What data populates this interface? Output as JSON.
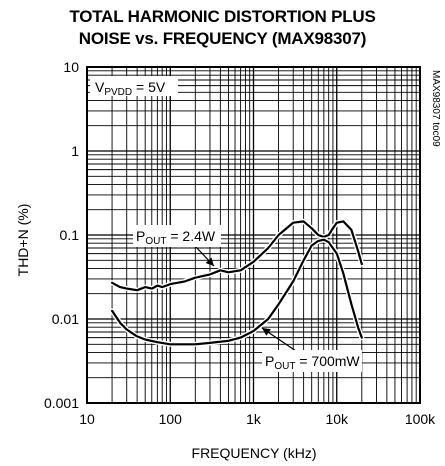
{
  "chart_data": {
    "type": "line",
    "title_line1": "TOTAL HARMONIC DISTORTION PLUS",
    "title_line2": "NOISE vs. FREQUENCY (MAX98307)",
    "xlabel": "FREQUENCY (kHz)",
    "ylabel": "THD+N (%)",
    "x_scale": "log",
    "y_scale": "log",
    "xlim": [
      10,
      100000
    ],
    "ylim": [
      0.001,
      10
    ],
    "grid": true,
    "x_ticks": [
      10,
      100,
      1000,
      10000,
      100000
    ],
    "x_tick_labels": [
      "10",
      "100",
      "1k",
      "10k",
      "100k"
    ],
    "y_ticks": [
      0.001,
      0.01,
      0.1,
      1,
      10
    ],
    "y_tick_labels": [
      "0.001",
      "0.01",
      "0.1",
      "1",
      "10"
    ],
    "annotation_condition": "VPVDD = 5V",
    "side_code": "MAX98307 toc09",
    "series": [
      {
        "name": "POUT = 2.4W",
        "x": [
          20,
          25,
          30,
          40,
          50,
          60,
          70,
          80,
          100,
          150,
          200,
          300,
          400,
          500,
          700,
          1000,
          1500,
          2000,
          3000,
          4000,
          5000,
          6000,
          7000,
          8000,
          9000,
          10000,
          12000,
          15000,
          18000,
          20000
        ],
        "y": [
          0.027,
          0.024,
          0.023,
          0.022,
          0.024,
          0.023,
          0.025,
          0.024,
          0.026,
          0.028,
          0.031,
          0.034,
          0.038,
          0.036,
          0.038,
          0.048,
          0.07,
          0.1,
          0.14,
          0.145,
          0.12,
          0.1,
          0.095,
          0.1,
          0.12,
          0.14,
          0.145,
          0.115,
          0.065,
          0.045
        ]
      },
      {
        "name": "POUT = 700mW",
        "x": [
          20,
          25,
          30,
          40,
          50,
          70,
          100,
          150,
          200,
          300,
          500,
          700,
          1000,
          1500,
          2000,
          3000,
          4000,
          5000,
          6000,
          7000,
          8000,
          10000,
          12000,
          15000,
          18000,
          20000
        ],
        "y": [
          0.0125,
          0.009,
          0.0075,
          0.0062,
          0.0057,
          0.0053,
          0.005,
          0.005,
          0.005,
          0.0052,
          0.0055,
          0.006,
          0.0072,
          0.01,
          0.015,
          0.028,
          0.05,
          0.075,
          0.085,
          0.088,
          0.082,
          0.06,
          0.035,
          0.015,
          0.008,
          0.006
        ]
      }
    ]
  }
}
